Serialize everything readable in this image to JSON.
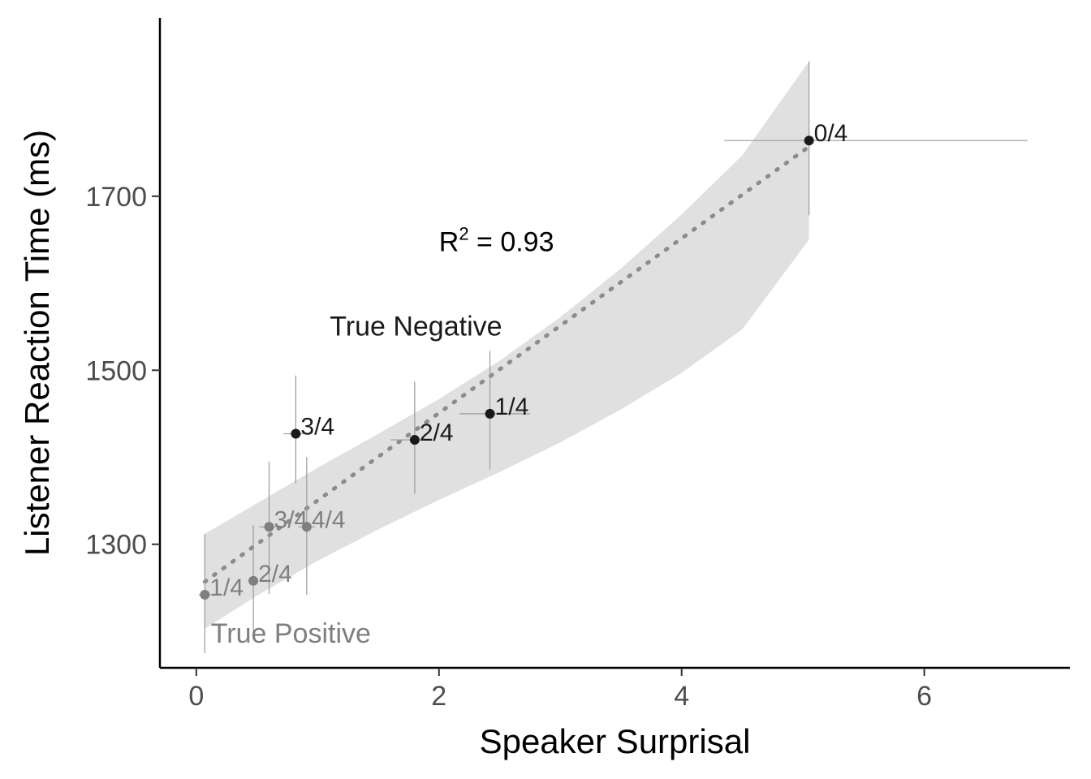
{
  "chart_data": {
    "type": "scatter",
    "xlabel": "Speaker Surprisal",
    "ylabel": "Listener Reaction Time (ms)",
    "xlim": [
      -0.3,
      7.2
    ],
    "ylim": [
      1158,
      1905
    ],
    "xticks": [
      0,
      2,
      4,
      6
    ],
    "yticks": [
      1300,
      1500,
      1700
    ],
    "grid": false,
    "colors": {
      "True Negative": "#1a1a1a",
      "True Positive": "#7f7f7f",
      "error_bar": "#9a9a9a",
      "ribbon": "#e0e0e0",
      "trend_line": "#8c8c8c"
    },
    "series": [
      {
        "name": "True Negative",
        "label_position": [
          1.1,
          1540
        ],
        "points": [
          {
            "x": 0.82,
            "y": 1427,
            "label": "3/4",
            "xerr": [
              0.72,
              0.88
            ],
            "yerr": [
              1370,
              1494
            ]
          },
          {
            "x": 1.8,
            "y": 1420,
            "label": "2/4",
            "xerr": [
              1.6,
              1.95
            ],
            "yerr": [
              1358,
              1487
            ]
          },
          {
            "x": 2.42,
            "y": 1450,
            "label": "1/4",
            "xerr": [
              2.17,
              2.75
            ],
            "yerr": [
              1386,
              1522
            ]
          },
          {
            "x": 5.05,
            "y": 1764,
            "label": "0/4",
            "xerr": [
              4.35,
              6.85
            ],
            "yerr": [
              1678,
              1855
            ]
          }
        ]
      },
      {
        "name": "True Positive",
        "label_position": [
          0.12,
          1187
        ],
        "points": [
          {
            "x": 0.07,
            "y": 1242,
            "label": "1/4",
            "xerr": [
              0.02,
              0.12
            ],
            "yerr": [
              1175,
              1312
            ]
          },
          {
            "x": 0.47,
            "y": 1258,
            "label": "2/4",
            "xerr": [
              0.44,
              0.5
            ],
            "yerr": [
              1195,
              1322
            ]
          },
          {
            "x": 0.6,
            "y": 1320,
            "label": "3/4",
            "xerr": [
              0.52,
              0.7
            ],
            "yerr": [
              1243,
              1395
            ]
          },
          {
            "x": 0.91,
            "y": 1320,
            "label": "4/4",
            "xerr": [
              0.84,
              0.98
            ],
            "yerr": [
              1242,
              1400
            ]
          }
        ]
      }
    ],
    "trend": {
      "type": "linear",
      "from": [
        0.07,
        1257
      ],
      "to": [
        5.05,
        1757
      ],
      "ci_ribbon": {
        "x": [
          0.07,
          0.5,
          1.0,
          1.5,
          2.0,
          2.5,
          3.0,
          3.5,
          4.0,
          4.5,
          5.05
        ],
        "upper": [
          1312,
          1347,
          1388,
          1427,
          1467,
          1511,
          1561,
          1617,
          1679,
          1747,
          1855
        ],
        "lower": [
          1203,
          1241,
          1281,
          1317,
          1351,
          1383,
          1417,
          1455,
          1497,
          1547,
          1650
        ]
      }
    },
    "annotation": {
      "text": "R",
      "superscript": "2",
      "value_text": " = 0.93",
      "position": [
        2.0,
        1637
      ]
    }
  }
}
